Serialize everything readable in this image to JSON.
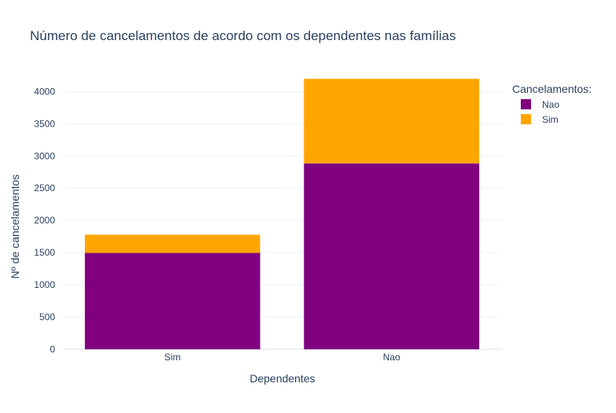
{
  "chart_data": {
    "type": "bar",
    "barmode": "stack",
    "title": "Número de cancelamentos de acordo com os dependentes nas famílias",
    "xlabel": "Dependentes",
    "ylabel": "Nº de cancelamentos",
    "categories": [
      "Sim",
      "Nao"
    ],
    "ylim": [
      0,
      4200
    ],
    "yticks": [
      0,
      500,
      1000,
      1500,
      2000,
      2500,
      3000,
      3500,
      4000
    ],
    "grid": true,
    "legend": {
      "title": "Cancelamentos:",
      "placement": "top-right"
    },
    "series": [
      {
        "name": "Nao",
        "color": "#800080",
        "values": [
          1495,
          2885
        ]
      },
      {
        "name": "Sim",
        "color": "#FFA500",
        "values": [
          283,
          1312
        ]
      }
    ]
  }
}
